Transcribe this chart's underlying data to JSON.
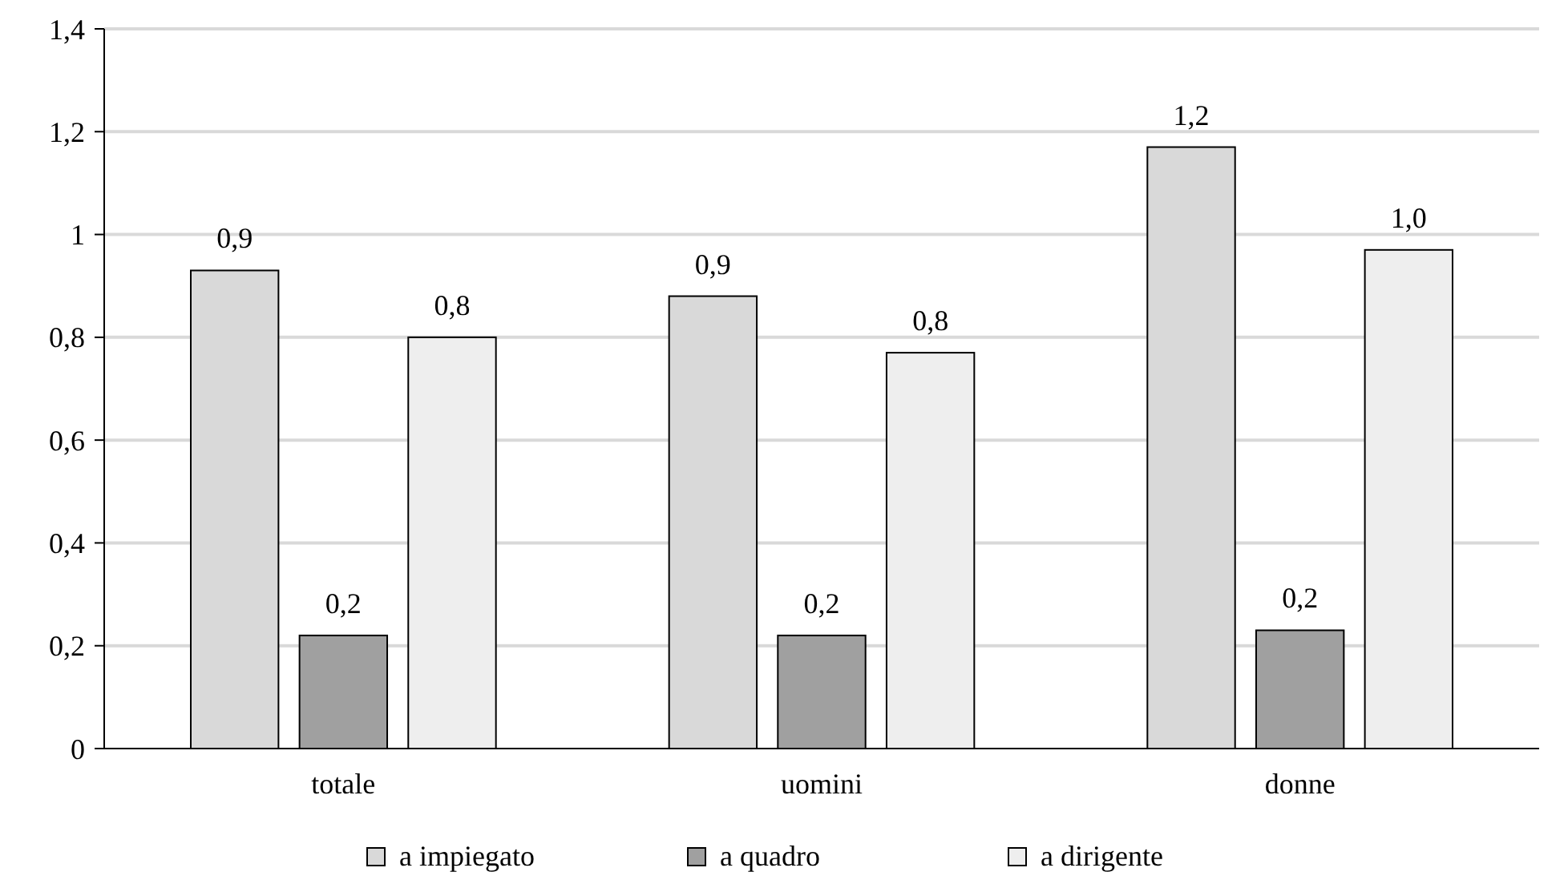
{
  "chart_data": {
    "type": "bar",
    "categories": [
      "totale",
      "uomini",
      "donne"
    ],
    "series": [
      {
        "name": "a impiegato",
        "color": "#d9d9d9",
        "values": [
          0.93,
          0.88,
          1.17
        ],
        "value_labels": [
          "0,9",
          "0,9",
          "1,2"
        ]
      },
      {
        "name": "a quadro",
        "color": "#a0a0a0",
        "values": [
          0.22,
          0.22,
          0.23
        ],
        "value_labels": [
          "0,2",
          "0,2",
          "0,2"
        ]
      },
      {
        "name": "a dirigente",
        "color": "#eeeeee",
        "values": [
          0.8,
          0.77,
          0.97
        ],
        "value_labels": [
          "0,8",
          "0,8",
          "1,0"
        ]
      }
    ],
    "ylim": [
      0,
      1.4
    ],
    "yticks": [
      0,
      {
        "value": 0.2,
        "label": "0,2"
      },
      {
        "value": 0.4,
        "label": "0,4"
      },
      {
        "value": 0.6,
        "label": "0,6"
      },
      {
        "value": 0.8,
        "label": "0,8"
      },
      1,
      {
        "value": 1.2,
        "label": "1,2"
      },
      {
        "value": 1.4,
        "label": "1,4"
      }
    ],
    "grid": "y",
    "legend": "bottom"
  }
}
